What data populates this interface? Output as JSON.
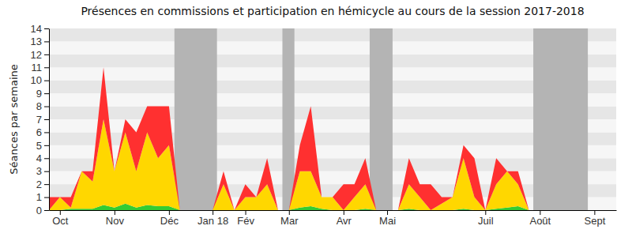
{
  "chart_data": {
    "type": "area",
    "title": "Présences en commissions et participation en hémicycle au cours de la session 2017-2018",
    "y_label": "Séances par semaine",
    "stacked": true,
    "grid": true,
    "categories": [
      null,
      "Oct",
      null,
      null,
      null,
      null,
      "Nov",
      null,
      null,
      null,
      null,
      "Déc",
      null,
      null,
      null,
      "Jan 18",
      null,
      null,
      "Fév",
      null,
      null,
      null,
      "Mar",
      null,
      null,
      null,
      null,
      "Avr",
      null,
      null,
      null,
      "Mai",
      null,
      null,
      null,
      null,
      null,
      null,
      null,
      null,
      "Juil",
      null,
      null,
      null,
      null,
      "Août",
      null,
      null,
      null,
      null,
      "Sept",
      null,
      null
    ],
    "series": [
      {
        "color": "#33cc33",
        "values": [
          0,
          0,
          0.1,
          0.1,
          0.1,
          0.4,
          0.2,
          0.5,
          0.2,
          0.4,
          0.3,
          0.3,
          0,
          0,
          0,
          0,
          0,
          0,
          0,
          0,
          0,
          0,
          0,
          0.2,
          0.3,
          0.1,
          0,
          0,
          0,
          0.1,
          0,
          0,
          0,
          0.1,
          0,
          0,
          0,
          0,
          0.1,
          0,
          0,
          0.1,
          0.2,
          0.3,
          0,
          0,
          0,
          0,
          0,
          0,
          0,
          0,
          0
        ]
      },
      {
        "color": "#ffd700",
        "values": [
          0,
          1,
          0.1,
          2.9,
          2.1,
          6.6,
          2.8,
          5.5,
          2.8,
          5.6,
          3.7,
          4.7,
          0,
          0,
          0,
          0,
          2,
          0,
          1,
          1,
          2,
          0,
          0,
          2.8,
          2.7,
          0.9,
          1,
          0,
          1,
          1.9,
          0,
          0,
          0,
          1.9,
          1,
          0,
          0.5,
          1,
          3.9,
          1,
          0,
          1.9,
          2.8,
          1.7,
          0,
          0,
          0,
          0,
          0,
          0,
          0,
          0,
          0
        ]
      },
      {
        "color": "#ff3030",
        "values": [
          1,
          0,
          0.8,
          0,
          0.8,
          4,
          0,
          1,
          3,
          2,
          4,
          3,
          0,
          0,
          0,
          0,
          1,
          0,
          1,
          0,
          2,
          0,
          0,
          2,
          5,
          0,
          0,
          2,
          1,
          2,
          0,
          0,
          0,
          2,
          1,
          2,
          0.5,
          0,
          1,
          3,
          0,
          2,
          0,
          1,
          0,
          0,
          0,
          0,
          0,
          0,
          0,
          0,
          0
        ]
      }
    ],
    "shaded_weeks": [
      [
        11.5,
        15.4
      ],
      [
        21.4,
        22.5
      ],
      [
        29.4,
        31.5
      ],
      [
        44.4,
        49.4
      ]
    ],
    "ylim": [
      0,
      14
    ],
    "yticks": [
      0,
      1,
      2,
      3,
      4,
      5,
      6,
      7,
      8,
      9,
      10,
      11,
      12,
      13,
      14
    ]
  }
}
